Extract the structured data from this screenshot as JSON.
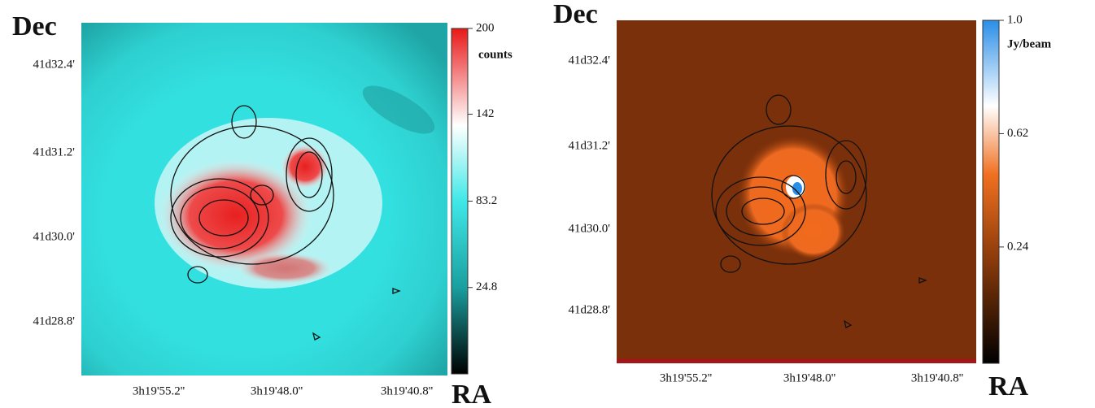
{
  "panels": [
    {
      "y_label": "Dec",
      "x_label": "RA",
      "yticks": [
        "41d32.4'",
        "41d31.2'",
        "41d30.0'",
        "41d28.8'"
      ],
      "xticks": [
        "3h19'55.2''",
        "3h19'48.0''",
        "3h19'40.8''"
      ],
      "colorbar": {
        "unit": "counts",
        "lim": [
          -33.6,
          200
        ],
        "ticks": [
          200,
          142,
          83.2,
          24.8
        ]
      }
    },
    {
      "y_label": "Dec",
      "x_label": "RA",
      "yticks": [
        "41d32.4'",
        "41d31.2'",
        "41d30.0'",
        "41d28.8'"
      ],
      "xticks": [
        "3h19'55.2''",
        "3h19'48.0''",
        "3h19'40.8''"
      ],
      "colorbar": {
        "unit": "Jy/beam",
        "lim": [
          -0.15,
          1
        ],
        "ticks": [
          {
            "value": 1,
            "label": "1.0"
          },
          0.62,
          0.24
        ]
      }
    }
  ]
}
